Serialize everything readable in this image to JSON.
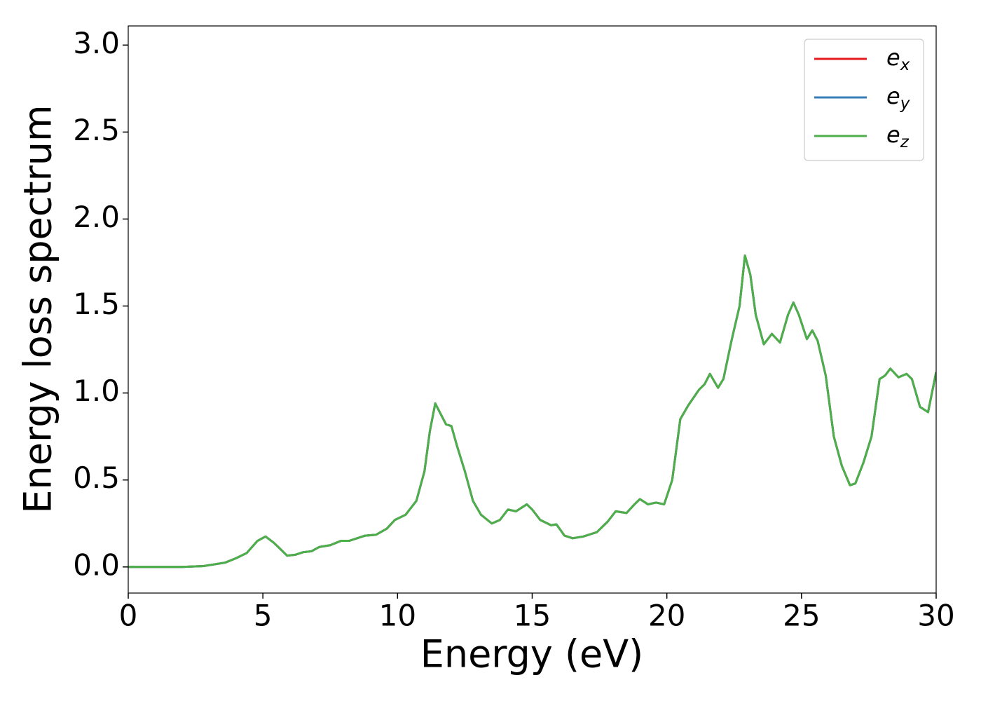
{
  "chart_data": {
    "type": "line",
    "xlabel": "Energy (eV)",
    "ylabel": "Energy loss spectrum",
    "x": [
      0,
      1,
      2,
      2.8,
      3.2,
      3.6,
      4.0,
      4.4,
      4.8,
      5.1,
      5.4,
      5.6,
      5.9,
      6.2,
      6.5,
      6.8,
      7.1,
      7.5,
      7.9,
      8.2,
      8.5,
      8.8,
      9.2,
      9.6,
      9.9,
      10.3,
      10.7,
      11.0,
      11.2,
      11.4,
      11.6,
      11.8,
      12.0,
      12.2,
      12.5,
      12.8,
      13.1,
      13.5,
      13.8,
      14.1,
      14.4,
      14.8,
      15.0,
      15.3,
      15.7,
      15.9,
      16.2,
      16.5,
      16.9,
      17.4,
      17.8,
      18.1,
      18.5,
      18.8,
      19.0,
      19.3,
      19.6,
      19.9,
      20.2,
      20.5,
      20.8,
      21.2,
      21.4,
      21.6,
      21.9,
      22.1,
      22.4,
      22.7,
      22.9,
      23.1,
      23.3,
      23.6,
      23.9,
      24.2,
      24.5,
      24.7,
      24.9,
      25.2,
      25.4,
      25.6,
      25.9,
      26.2,
      26.5,
      26.8,
      27.0,
      27.3,
      27.6,
      27.9,
      28.1,
      28.3,
      28.6,
      28.9,
      29.1,
      29.4,
      29.7,
      30.0
    ],
    "series": [
      {
        "name": "e_x",
        "color": "#e41a1c",
        "values": [
          0,
          0,
          0,
          0.005,
          0.015,
          0.025,
          0.05,
          0.08,
          0.15,
          0.175,
          0.14,
          0.11,
          0.065,
          0.07,
          0.085,
          0.09,
          0.115,
          0.125,
          0.15,
          0.15,
          0.165,
          0.18,
          0.185,
          0.22,
          0.27,
          0.3,
          0.38,
          0.55,
          0.78,
          0.94,
          0.88,
          0.82,
          0.81,
          0.7,
          0.55,
          0.38,
          0.3,
          0.25,
          0.27,
          0.33,
          0.32,
          0.36,
          0.33,
          0.27,
          0.24,
          0.245,
          0.18,
          0.165,
          0.175,
          0.2,
          0.26,
          0.32,
          0.31,
          0.36,
          0.39,
          0.36,
          0.37,
          0.36,
          0.5,
          0.85,
          0.93,
          1.02,
          1.05,
          1.11,
          1.03,
          1.08,
          1.3,
          1.5,
          1.79,
          1.68,
          1.45,
          1.28,
          1.34,
          1.29,
          1.45,
          1.52,
          1.45,
          1.31,
          1.36,
          1.3,
          1.1,
          0.75,
          0.58,
          0.47,
          0.48,
          0.6,
          0.75,
          1.08,
          1.1,
          1.14,
          1.09,
          1.11,
          1.08,
          0.92,
          0.89,
          1.12
        ]
      },
      {
        "name": "e_y",
        "color": "#377eb8",
        "values": [
          0,
          0,
          0,
          0.005,
          0.015,
          0.025,
          0.05,
          0.08,
          0.15,
          0.175,
          0.14,
          0.11,
          0.065,
          0.07,
          0.085,
          0.09,
          0.115,
          0.125,
          0.15,
          0.15,
          0.165,
          0.18,
          0.185,
          0.22,
          0.27,
          0.3,
          0.38,
          0.55,
          0.78,
          0.94,
          0.88,
          0.82,
          0.81,
          0.7,
          0.55,
          0.38,
          0.3,
          0.25,
          0.27,
          0.33,
          0.32,
          0.36,
          0.33,
          0.27,
          0.24,
          0.245,
          0.18,
          0.165,
          0.175,
          0.2,
          0.26,
          0.32,
          0.31,
          0.36,
          0.39,
          0.36,
          0.37,
          0.36,
          0.5,
          0.85,
          0.93,
          1.02,
          1.05,
          1.11,
          1.03,
          1.08,
          1.3,
          1.5,
          1.79,
          1.68,
          1.45,
          1.28,
          1.34,
          1.29,
          1.45,
          1.52,
          1.45,
          1.31,
          1.36,
          1.3,
          1.1,
          0.75,
          0.58,
          0.47,
          0.48,
          0.6,
          0.75,
          1.08,
          1.1,
          1.14,
          1.09,
          1.11,
          1.08,
          0.92,
          0.89,
          1.12
        ]
      },
      {
        "name": "e_z",
        "color": "#4daf4a",
        "values": [
          0,
          0,
          0,
          0.005,
          0.015,
          0.025,
          0.05,
          0.08,
          0.15,
          0.175,
          0.14,
          0.11,
          0.065,
          0.07,
          0.085,
          0.09,
          0.115,
          0.125,
          0.15,
          0.15,
          0.165,
          0.18,
          0.185,
          0.22,
          0.27,
          0.3,
          0.38,
          0.55,
          0.78,
          0.94,
          0.88,
          0.82,
          0.81,
          0.7,
          0.55,
          0.38,
          0.3,
          0.25,
          0.27,
          0.33,
          0.32,
          0.36,
          0.33,
          0.27,
          0.24,
          0.245,
          0.18,
          0.165,
          0.175,
          0.2,
          0.26,
          0.32,
          0.31,
          0.36,
          0.39,
          0.36,
          0.37,
          0.36,
          0.5,
          0.85,
          0.93,
          1.02,
          1.05,
          1.11,
          1.03,
          1.08,
          1.3,
          1.5,
          1.79,
          1.68,
          1.45,
          1.28,
          1.34,
          1.29,
          1.45,
          1.52,
          1.45,
          1.31,
          1.36,
          1.3,
          1.1,
          0.75,
          0.58,
          0.47,
          0.48,
          0.6,
          0.75,
          1.08,
          1.1,
          1.14,
          1.09,
          1.11,
          1.08,
          0.92,
          0.89,
          1.12
        ]
      }
    ],
    "xlim": [
      0,
      30
    ],
    "xticks": [
      0,
      5,
      10,
      15,
      20,
      25,
      30
    ],
    "ylim": [
      -0.15,
      3.11
    ],
    "yticks": [
      {
        "value": 0,
        "label": "0.0"
      },
      0.5,
      {
        "value": 1,
        "label": "1.0"
      },
      1.5,
      {
        "value": 2,
        "label": "2.0"
      },
      2.5,
      {
        "value": 3,
        "label": "3.0"
      }
    ],
    "legend": "upper right",
    "grid": false
  }
}
